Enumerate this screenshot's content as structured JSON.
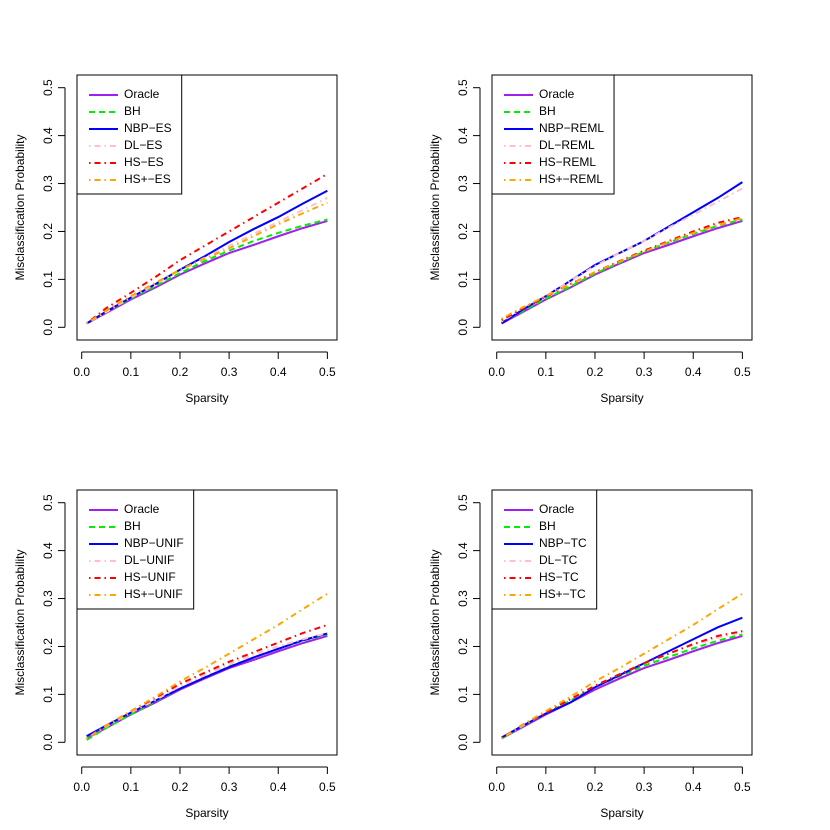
{
  "chart_data": [
    {
      "type": "line",
      "xlabel": "Sparsity",
      "ylabel": "Misclassification Probability",
      "x": [
        0.01,
        0.05,
        0.1,
        0.15,
        0.2,
        0.25,
        0.3,
        0.35,
        0.4,
        0.45,
        0.5
      ],
      "xlim": [
        -0.0096,
        0.5196
      ],
      "ylim": [
        -0.0265,
        0.5265
      ],
      "xticks": [
        {
          "value": 0,
          "label": "0.0"
        },
        0.1,
        0.2,
        0.3,
        0.4,
        0.5
      ],
      "yticks": [
        {
          "value": 0,
          "label": "0.0"
        },
        0.1,
        0.2,
        0.3,
        0.4,
        0.5
      ],
      "legend": "topleft",
      "series": [
        {
          "name": "Oracle",
          "color": "#a020f0",
          "linestyle": "solid",
          "values": [
            0.008,
            0.03,
            0.058,
            0.083,
            0.11,
            0.133,
            0.155,
            0.172,
            0.19,
            0.207,
            0.222
          ]
        },
        {
          "name": "BH",
          "color": "#00ee00",
          "linestyle": "dashed",
          "values": [
            0.008,
            0.032,
            0.06,
            0.086,
            0.113,
            0.138,
            0.16,
            0.18,
            0.197,
            0.212,
            0.225
          ]
        },
        {
          "name": "NBP−ES",
          "color": "#0000ff",
          "linestyle": "solid",
          "values": [
            0.008,
            0.033,
            0.062,
            0.09,
            0.12,
            0.148,
            0.178,
            0.205,
            0.23,
            0.258,
            0.285
          ]
        },
        {
          "name": "DL−ES",
          "color": "#ffc0cb",
          "linestyle": "dotdash",
          "values": [
            0.008,
            0.032,
            0.062,
            0.09,
            0.118,
            0.145,
            0.17,
            0.195,
            0.22,
            0.245,
            0.27
          ]
        },
        {
          "name": "HS−ES",
          "color": "#ff0000",
          "linestyle": "dotdash",
          "values": [
            0.008,
            0.04,
            0.072,
            0.105,
            0.14,
            0.17,
            0.2,
            0.23,
            0.26,
            0.29,
            0.32
          ]
        },
        {
          "name": "HS+−ES",
          "color": "#ffa500",
          "linestyle": "dotdash",
          "values": [
            0.008,
            0.035,
            0.065,
            0.093,
            0.12,
            0.143,
            0.165,
            0.19,
            0.215,
            0.238,
            0.26
          ]
        }
      ]
    },
    {
      "type": "line",
      "xlabel": "Sparsity",
      "ylabel": "Misclassification Probability",
      "x": [
        0.01,
        0.05,
        0.1,
        0.15,
        0.2,
        0.25,
        0.3,
        0.35,
        0.4,
        0.45,
        0.5
      ],
      "xlim": [
        -0.0096,
        0.5196
      ],
      "ylim": [
        -0.0265,
        0.5265
      ],
      "xticks": [
        {
          "value": 0,
          "label": "0.0"
        },
        0.1,
        0.2,
        0.3,
        0.4,
        0.5
      ],
      "yticks": [
        {
          "value": 0,
          "label": "0.0"
        },
        0.1,
        0.2,
        0.3,
        0.4,
        0.5
      ],
      "legend": "topleft",
      "series": [
        {
          "name": "Oracle",
          "color": "#a020f0",
          "linestyle": "solid",
          "values": [
            0.008,
            0.03,
            0.058,
            0.083,
            0.11,
            0.133,
            0.155,
            0.172,
            0.19,
            0.207,
            0.222
          ]
        },
        {
          "name": "BH",
          "color": "#00ee00",
          "linestyle": "dashed",
          "values": [
            0.01,
            0.032,
            0.06,
            0.085,
            0.112,
            0.135,
            0.158,
            0.177,
            0.195,
            0.212,
            0.225
          ]
        },
        {
          "name": "NBP−REML",
          "color": "#0000ff",
          "linestyle": "solid",
          "values": [
            0.008,
            0.035,
            0.065,
            0.097,
            0.13,
            0.155,
            0.18,
            0.21,
            0.24,
            0.27,
            0.303
          ]
        },
        {
          "name": "DL−REML",
          "color": "#ffc0cb",
          "linestyle": "dotdash",
          "values": [
            0.012,
            0.038,
            0.066,
            0.097,
            0.128,
            0.155,
            0.18,
            0.208,
            0.235,
            0.262,
            0.29
          ]
        },
        {
          "name": "HS−REML",
          "color": "#ff0000",
          "linestyle": "dotdash",
          "values": [
            0.015,
            0.038,
            0.064,
            0.09,
            0.115,
            0.138,
            0.16,
            0.18,
            0.2,
            0.218,
            0.23
          ]
        },
        {
          "name": "HS+−REML",
          "color": "#ffa500",
          "linestyle": "dotdash",
          "values": [
            0.018,
            0.04,
            0.065,
            0.09,
            0.115,
            0.137,
            0.158,
            0.178,
            0.197,
            0.213,
            0.228
          ]
        }
      ]
    },
    {
      "type": "line",
      "xlabel": "Sparsity",
      "ylabel": "Misclassification Probability",
      "x": [
        0.01,
        0.05,
        0.1,
        0.15,
        0.2,
        0.25,
        0.3,
        0.35,
        0.4,
        0.45,
        0.5
      ],
      "xlim": [
        -0.0096,
        0.5196
      ],
      "ylim": [
        -0.0265,
        0.5265
      ],
      "xticks": [
        {
          "value": 0,
          "label": "0.0"
        },
        0.1,
        0.2,
        0.3,
        0.4,
        0.5
      ],
      "yticks": [
        {
          "value": 0,
          "label": "0.0"
        },
        0.1,
        0.2,
        0.3,
        0.4,
        0.5
      ],
      "legend": "topleft",
      "series": [
        {
          "name": "Oracle",
          "color": "#a020f0",
          "linestyle": "solid",
          "values": [
            0.008,
            0.03,
            0.058,
            0.083,
            0.11,
            0.133,
            0.155,
            0.172,
            0.19,
            0.207,
            0.222
          ]
        },
        {
          "name": "BH",
          "color": "#00ee00",
          "linestyle": "dashed",
          "values": [
            0.005,
            0.03,
            0.058,
            0.085,
            0.112,
            0.135,
            0.158,
            0.177,
            0.195,
            0.212,
            0.225
          ]
        },
        {
          "name": "NBP−UNIF",
          "color": "#0000ff",
          "linestyle": "solid",
          "values": [
            0.013,
            0.035,
            0.062,
            0.087,
            0.112,
            0.135,
            0.157,
            0.177,
            0.195,
            0.213,
            0.227
          ]
        },
        {
          "name": "DL−UNIF",
          "color": "#ffc0cb",
          "linestyle": "dotdash",
          "values": [
            0.008,
            0.033,
            0.062,
            0.088,
            0.117,
            0.14,
            0.163,
            0.183,
            0.2,
            0.215,
            0.228
          ]
        },
        {
          "name": "HS−UNIF",
          "color": "#ff0000",
          "linestyle": "dotdash",
          "values": [
            0.008,
            0.035,
            0.065,
            0.093,
            0.122,
            0.145,
            0.168,
            0.188,
            0.208,
            0.228,
            0.245
          ]
        },
        {
          "name": "HS+−UNIF",
          "color": "#ffa500",
          "linestyle": "dotdash",
          "values": [
            0.008,
            0.035,
            0.065,
            0.095,
            0.127,
            0.155,
            0.185,
            0.215,
            0.245,
            0.278,
            0.31
          ]
        }
      ]
    },
    {
      "type": "line",
      "xlabel": "Sparsity",
      "ylabel": "Misclassification Probability",
      "x": [
        0.01,
        0.05,
        0.1,
        0.15,
        0.2,
        0.25,
        0.3,
        0.35,
        0.4,
        0.45,
        0.5
      ],
      "xlim": [
        -0.0096,
        0.5196
      ],
      "ylim": [
        -0.0265,
        0.5265
      ],
      "xticks": [
        {
          "value": 0,
          "label": "0.0"
        },
        0.1,
        0.2,
        0.3,
        0.4,
        0.5
      ],
      "yticks": [
        {
          "value": 0,
          "label": "0.0"
        },
        0.1,
        0.2,
        0.3,
        0.4,
        0.5
      ],
      "legend": "topleft",
      "series": [
        {
          "name": "Oracle",
          "color": "#a020f0",
          "linestyle": "solid",
          "values": [
            0.008,
            0.03,
            0.058,
            0.083,
            0.11,
            0.133,
            0.155,
            0.172,
            0.19,
            0.207,
            0.222
          ]
        },
        {
          "name": "BH",
          "color": "#00ee00",
          "linestyle": "dashed",
          "values": [
            0.008,
            0.032,
            0.06,
            0.087,
            0.115,
            0.138,
            0.16,
            0.178,
            0.196,
            0.212,
            0.225
          ]
        },
        {
          "name": "NBP−TC",
          "color": "#0000ff",
          "linestyle": "solid",
          "values": [
            0.01,
            0.033,
            0.06,
            0.083,
            0.115,
            0.14,
            0.165,
            0.19,
            0.215,
            0.24,
            0.26
          ]
        },
        {
          "name": "DL−TC",
          "color": "#ffc0cb",
          "linestyle": "dotdash",
          "values": [
            0.008,
            0.033,
            0.062,
            0.09,
            0.118,
            0.142,
            0.165,
            0.185,
            0.203,
            0.218,
            0.23
          ]
        },
        {
          "name": "HS−TC",
          "color": "#ff0000",
          "linestyle": "dotdash",
          "values": [
            0.008,
            0.035,
            0.062,
            0.09,
            0.118,
            0.142,
            0.165,
            0.185,
            0.205,
            0.222,
            0.232
          ]
        },
        {
          "name": "HS+−TC",
          "color": "#ffa500",
          "linestyle": "dotdash",
          "values": [
            0.008,
            0.035,
            0.065,
            0.095,
            0.127,
            0.155,
            0.185,
            0.215,
            0.245,
            0.278,
            0.31
          ]
        }
      ]
    }
  ]
}
